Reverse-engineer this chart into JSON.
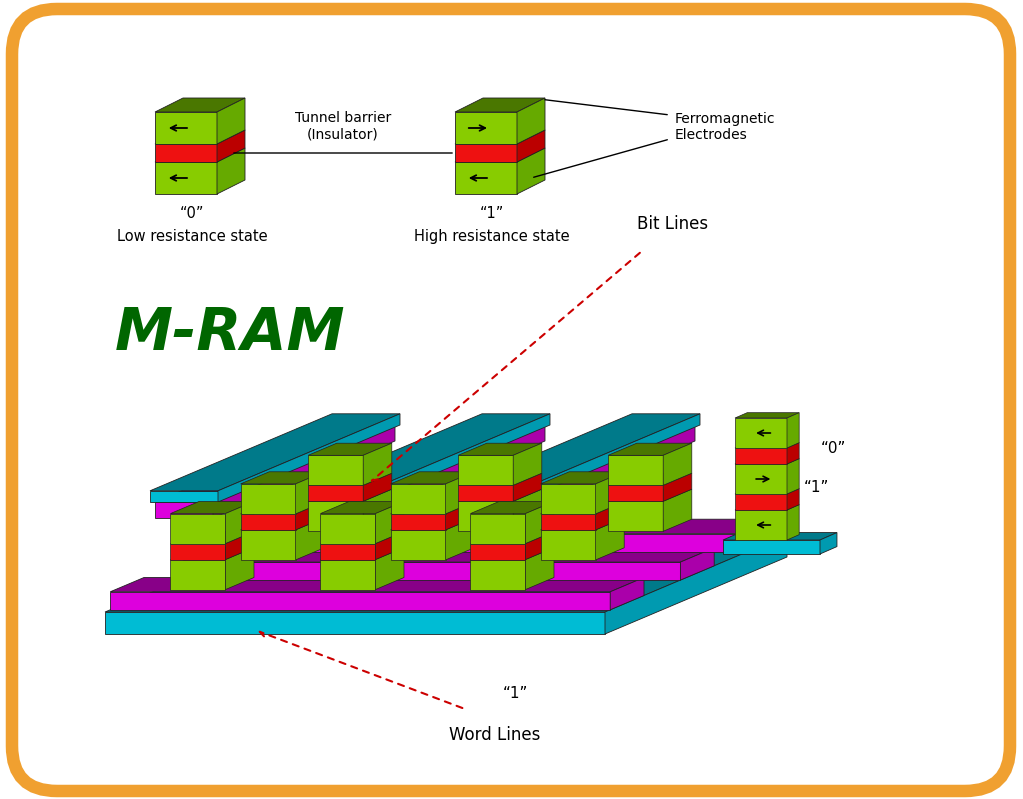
{
  "background_color": "#ffffff",
  "border_color": "#f0a030",
  "border_linewidth": 8,
  "green_color": "#88cc00",
  "green_dark_color": "#4a7700",
  "green_side_color": "#66aa00",
  "red_color": "#ee1111",
  "red_dark_color": "#aa0000",
  "red_side_color": "#bb0000",
  "cyan_color": "#00bcd4",
  "cyan_dark_color": "#007a8a",
  "cyan_side_color": "#009ab0",
  "magenta_color": "#dd00dd",
  "magenta_dark_color": "#880088",
  "magenta_side_color": "#aa00aa",
  "mram_text": "M-RAM",
  "mram_color": "#006600",
  "mram_fontsize": 42,
  "tunnel_barrier_text": "Tunnel barrier\n(Insulator)",
  "ferromagnetic_text": "Ferromagnetic\nElectrodes",
  "state0_line1": "“0”",
  "state0_line2": "Low resistance state",
  "state1_line1": "“1”",
  "state1_line2": "High resistance state",
  "bit_lines_text": "Bit Lines",
  "word_lines_text": "Word Lines",
  "label_0": "“0”",
  "label_1": "“1”",
  "text_color": "#000000",
  "annotation_color": "#cc0000"
}
